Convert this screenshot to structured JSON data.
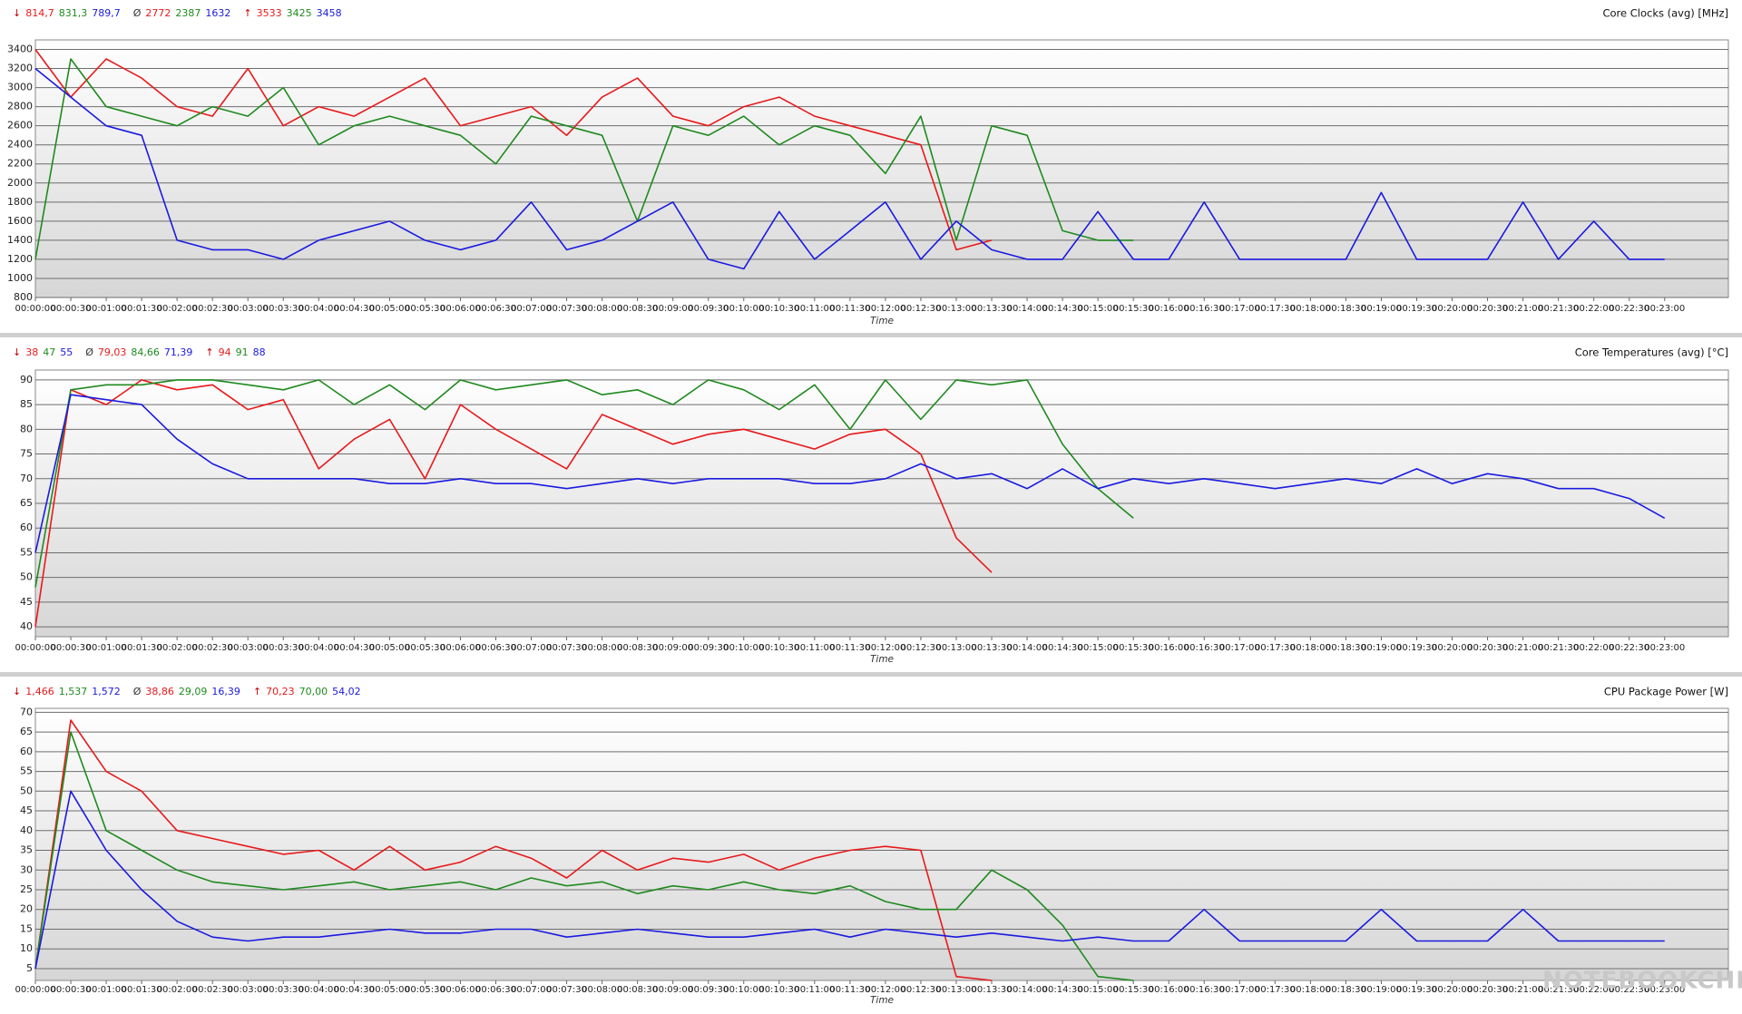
{
  "chart_data": [
    {
      "type": "line",
      "title": "Core Clocks (avg) [MHz]",
      "xlabel": "Time",
      "stat_symbols": [
        "↓",
        "Ø",
        "↑"
      ],
      "categories": [
        "00:00:00",
        "00:00:30",
        "00:01:00",
        "00:01:30",
        "00:02:00",
        "00:02:30",
        "00:03:00",
        "00:03:30",
        "00:04:00",
        "00:04:30",
        "00:05:00",
        "00:05:30",
        "00:06:00",
        "00:06:30",
        "00:07:00",
        "00:07:30",
        "00:08:00",
        "00:08:30",
        "00:09:00",
        "00:09:30",
        "00:10:00",
        "00:10:30",
        "00:11:00",
        "00:11:30",
        "00:12:00",
        "00:12:30",
        "00:13:00",
        "00:13:30",
        "00:14:00",
        "00:14:30",
        "00:15:00",
        "00:15:30",
        "00:16:00",
        "00:16:30",
        "00:17:00",
        "00:17:30",
        "00:18:00",
        "00:18:30",
        "00:19:00",
        "00:19:30",
        "00:20:00",
        "00:20:30",
        "00:21:00",
        "00:21:30",
        "00:22:00",
        "00:22:30",
        "00:23:00"
      ],
      "ylim": [
        800,
        3500
      ],
      "yticks": [
        800,
        1000,
        1200,
        1400,
        1600,
        1800,
        2000,
        2200,
        2400,
        2600,
        2800,
        3000,
        3200,
        3400
      ],
      "grid": true,
      "series": [
        {
          "color": "#e8191b",
          "stats": [
            "814,7",
            "2772",
            "3533"
          ],
          "values": [
            3400,
            2900,
            3300,
            3100,
            2800,
            2700,
            3200,
            2600,
            2800,
            2700,
            2900,
            3100,
            2600,
            2700,
            2800,
            2500,
            2900,
            3100,
            2700,
            2600,
            2800,
            2900,
            2700,
            2600,
            2500,
            2400,
            1300,
            1400,
            null,
            null,
            null,
            null,
            null,
            null,
            null,
            null,
            null,
            null,
            null,
            null,
            null,
            null,
            null,
            null,
            null,
            null,
            null
          ]
        },
        {
          "color": "#1f8a1f",
          "stats": [
            "831,3",
            "2387",
            "3425"
          ],
          "values": [
            1200,
            3300,
            2800,
            2700,
            2600,
            2800,
            2700,
            3000,
            2400,
            2600,
            2700,
            2600,
            2500,
            2200,
            2700,
            2600,
            2500,
            1600,
            2600,
            2500,
            2700,
            2400,
            2600,
            2500,
            2100,
            2700,
            1400,
            2600,
            2500,
            1500,
            1400,
            1400,
            null,
            null,
            null,
            null,
            null,
            null,
            null,
            null,
            null,
            null,
            null,
            null,
            null,
            null,
            null
          ]
        },
        {
          "color": "#1a1ae0",
          "stats": [
            "789,7",
            "1632",
            "3458"
          ],
          "values": [
            3200,
            2900,
            2600,
            2500,
            1400,
            1300,
            1300,
            1200,
            1400,
            1500,
            1600,
            1400,
            1300,
            1400,
            1800,
            1300,
            1400,
            1600,
            1800,
            1200,
            1100,
            1700,
            1200,
            1500,
            1800,
            1200,
            1600,
            1300,
            1200,
            1200,
            1700,
            1200,
            1200,
            1800,
            1200,
            1200,
            1200,
            1200,
            1900,
            1200,
            1200,
            1200,
            1800,
            1200,
            1600,
            1200,
            1200
          ]
        }
      ]
    },
    {
      "type": "line",
      "title": "Core Temperatures (avg) [°C]",
      "xlabel": "Time",
      "stat_symbols": [
        "↓",
        "Ø",
        "↑"
      ],
      "categories": [
        "00:00:00",
        "00:00:30",
        "00:01:00",
        "00:01:30",
        "00:02:00",
        "00:02:30",
        "00:03:00",
        "00:03:30",
        "00:04:00",
        "00:04:30",
        "00:05:00",
        "00:05:30",
        "00:06:00",
        "00:06:30",
        "00:07:00",
        "00:07:30",
        "00:08:00",
        "00:08:30",
        "00:09:00",
        "00:09:30",
        "00:10:00",
        "00:10:30",
        "00:11:00",
        "00:11:30",
        "00:12:00",
        "00:12:30",
        "00:13:00",
        "00:13:30",
        "00:14:00",
        "00:14:30",
        "00:15:00",
        "00:15:30",
        "00:16:00",
        "00:16:30",
        "00:17:00",
        "00:17:30",
        "00:18:00",
        "00:18:30",
        "00:19:00",
        "00:19:30",
        "00:20:00",
        "00:20:30",
        "00:21:00",
        "00:21:30",
        "00:22:00",
        "00:22:30",
        "00:23:00"
      ],
      "ylim": [
        38,
        92
      ],
      "yticks": [
        40,
        45,
        50,
        55,
        60,
        65,
        70,
        75,
        80,
        85,
        90
      ],
      "grid": true,
      "series": [
        {
          "color": "#e8191b",
          "stats": [
            "38",
            "79,03",
            "94"
          ],
          "values": [
            40,
            88,
            85,
            90,
            88,
            89,
            84,
            86,
            72,
            78,
            82,
            70,
            85,
            80,
            76,
            72,
            83,
            80,
            77,
            79,
            80,
            78,
            76,
            79,
            80,
            75,
            58,
            51,
            null,
            null,
            null,
            null,
            null,
            null,
            null,
            null,
            null,
            null,
            null,
            null,
            null,
            null,
            null,
            null,
            null,
            null,
            null
          ]
        },
        {
          "color": "#1f8a1f",
          "stats": [
            "47",
            "84,66",
            "91"
          ],
          "values": [
            48,
            88,
            89,
            89,
            90,
            90,
            89,
            88,
            90,
            85,
            89,
            84,
            90,
            88,
            89,
            90,
            87,
            88,
            85,
            90,
            88,
            84,
            89,
            80,
            90,
            82,
            90,
            89,
            90,
            77,
            68,
            62,
            null,
            null,
            null,
            null,
            null,
            null,
            null,
            null,
            null,
            null,
            null,
            null,
            null,
            null,
            null
          ]
        },
        {
          "color": "#1a1ae0",
          "stats": [
            "55",
            "71,39",
            "88"
          ],
          "values": [
            55,
            87,
            86,
            85,
            78,
            73,
            70,
            70,
            70,
            70,
            69,
            69,
            70,
            69,
            69,
            68,
            69,
            70,
            69,
            70,
            70,
            70,
            69,
            69,
            70,
            73,
            70,
            71,
            68,
            72,
            68,
            70,
            69,
            70,
            69,
            68,
            69,
            70,
            69,
            72,
            69,
            71,
            70,
            68,
            68,
            66,
            62
          ]
        }
      ]
    },
    {
      "type": "line",
      "title": "CPU Package Power [W]",
      "xlabel": "Time",
      "stat_symbols": [
        "↓",
        "Ø",
        "↑"
      ],
      "categories": [
        "00:00:00",
        "00:00:30",
        "00:01:00",
        "00:01:30",
        "00:02:00",
        "00:02:30",
        "00:03:00",
        "00:03:30",
        "00:04:00",
        "00:04:30",
        "00:05:00",
        "00:05:30",
        "00:06:00",
        "00:06:30",
        "00:07:00",
        "00:07:30",
        "00:08:00",
        "00:08:30",
        "00:09:00",
        "00:09:30",
        "00:10:00",
        "00:10:30",
        "00:11:00",
        "00:11:30",
        "00:12:00",
        "00:12:30",
        "00:13:00",
        "00:13:30",
        "00:14:00",
        "00:14:30",
        "00:15:00",
        "00:15:30",
        "00:16:00",
        "00:16:30",
        "00:17:00",
        "00:17:30",
        "00:18:00",
        "00:18:30",
        "00:19:00",
        "00:19:30",
        "00:20:00",
        "00:20:30",
        "00:21:00",
        "00:21:30",
        "00:22:00",
        "00:22:30",
        "00:23:00"
      ],
      "ylim": [
        2,
        71
      ],
      "yticks": [
        5,
        10,
        15,
        20,
        25,
        30,
        35,
        40,
        45,
        50,
        55,
        60,
        65,
        70
      ],
      "grid": true,
      "series": [
        {
          "color": "#e8191b",
          "stats": [
            "1,466",
            "38,86",
            "70,23"
          ],
          "values": [
            5,
            68,
            55,
            50,
            40,
            38,
            36,
            34,
            35,
            30,
            36,
            30,
            32,
            36,
            33,
            28,
            35,
            30,
            33,
            32,
            34,
            30,
            33,
            35,
            36,
            35,
            3,
            2,
            null,
            null,
            null,
            null,
            null,
            null,
            null,
            null,
            null,
            null,
            null,
            null,
            null,
            null,
            null,
            null,
            null,
            null,
            null
          ]
        },
        {
          "color": "#1f8a1f",
          "stats": [
            "1,537",
            "29,09",
            "70,00"
          ],
          "values": [
            5,
            65,
            40,
            35,
            30,
            27,
            26,
            25,
            26,
            27,
            25,
            26,
            27,
            25,
            28,
            26,
            27,
            24,
            26,
            25,
            27,
            25,
            24,
            26,
            22,
            20,
            20,
            30,
            25,
            16,
            3,
            2,
            null,
            null,
            null,
            null,
            null,
            null,
            null,
            null,
            null,
            null,
            null,
            null,
            null,
            null,
            null
          ]
        },
        {
          "color": "#1a1ae0",
          "stats": [
            "1,572",
            "16,39",
            "54,02"
          ],
          "values": [
            5,
            50,
            35,
            25,
            17,
            13,
            12,
            13,
            13,
            14,
            15,
            14,
            14,
            15,
            15,
            13,
            14,
            15,
            14,
            13,
            13,
            14,
            15,
            13,
            15,
            14,
            13,
            14,
            13,
            12,
            13,
            12,
            12,
            20,
            12,
            12,
            12,
            12,
            20,
            12,
            12,
            12,
            20,
            12,
            12,
            12,
            12
          ]
        }
      ]
    }
  ],
  "watermark": "NOTEBOOKCHECK"
}
